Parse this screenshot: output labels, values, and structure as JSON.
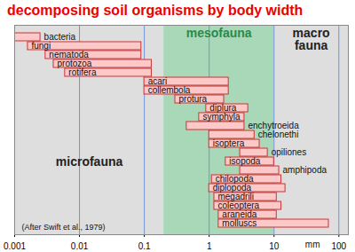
{
  "chart_data": {
    "type": "bar",
    "title": "decomposing soil organisms by body width",
    "orientation": "horizontal",
    "log": "x",
    "grid": true,
    "tick_labels": "x",
    "xlabel": "mm",
    "xlim": [
      0.001,
      140
    ],
    "xticks": [
      0.001,
      0.01,
      0.1,
      1,
      10,
      100
    ],
    "color": "#ffc8c8",
    "categories": [
      "bacteria",
      "fungi",
      "nematoda",
      "protozoa",
      "rotifera",
      "acari",
      "collembola",
      "protura",
      "diplura",
      "symphyla",
      "enchytroeida",
      "chelonethi",
      "isoptera",
      "opiliones",
      "isopoda",
      "amphipoda",
      "chilopoda",
      "diplopoda",
      "megadrili",
      "coleoptera",
      "araneida",
      "molluscs"
    ],
    "values": [
      [
        0.001,
        0.0025
      ],
      [
        0.0016,
        0.09
      ],
      [
        0.003,
        0.09
      ],
      [
        0.004,
        0.13
      ],
      [
        0.006,
        0.13
      ],
      [
        0.1,
        2
      ],
      [
        0.1,
        2
      ],
      [
        0.3,
        1.7
      ],
      [
        0.9,
        4
      ],
      [
        0.7,
        3.5
      ],
      [
        0.45,
        3.5
      ],
      [
        1,
        5
      ],
      [
        1,
        6
      ],
      [
        3,
        8
      ],
      [
        1.8,
        10
      ],
      [
        3,
        12
      ],
      [
        1.1,
        13
      ],
      [
        1,
        15
      ],
      [
        1.2,
        11
      ],
      [
        1.2,
        13
      ],
      [
        1.4,
        11
      ],
      [
        1.4,
        70
      ]
    ],
    "zones": [
      {
        "name": "microfauna",
        "from": 0.001,
        "to": 0.2,
        "color": "#dedede"
      },
      {
        "name": "mesofauna",
        "from": 0.2,
        "to": 10,
        "color": "#a8d8b8"
      },
      {
        "name": "macro fauna",
        "from": 10,
        "to": 140,
        "color": "#dedede"
      }
    ],
    "annotation": "(After Swift et al., 1979)"
  }
}
